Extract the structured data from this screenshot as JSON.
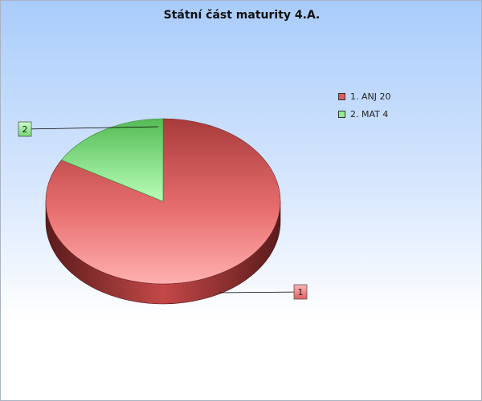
{
  "chart_data": {
    "type": "pie",
    "title": "Státní část maturity 4.A.",
    "categories": [
      "ANJ",
      "MAT"
    ],
    "values": [
      20,
      4
    ],
    "slice_labels": [
      "1",
      "2"
    ],
    "legend": [
      "1. ANJ 20",
      "2. MAT 4"
    ],
    "colors": [
      "#e05c5c",
      "#8cf08c"
    ],
    "legend_position": "right",
    "style": "3d"
  }
}
